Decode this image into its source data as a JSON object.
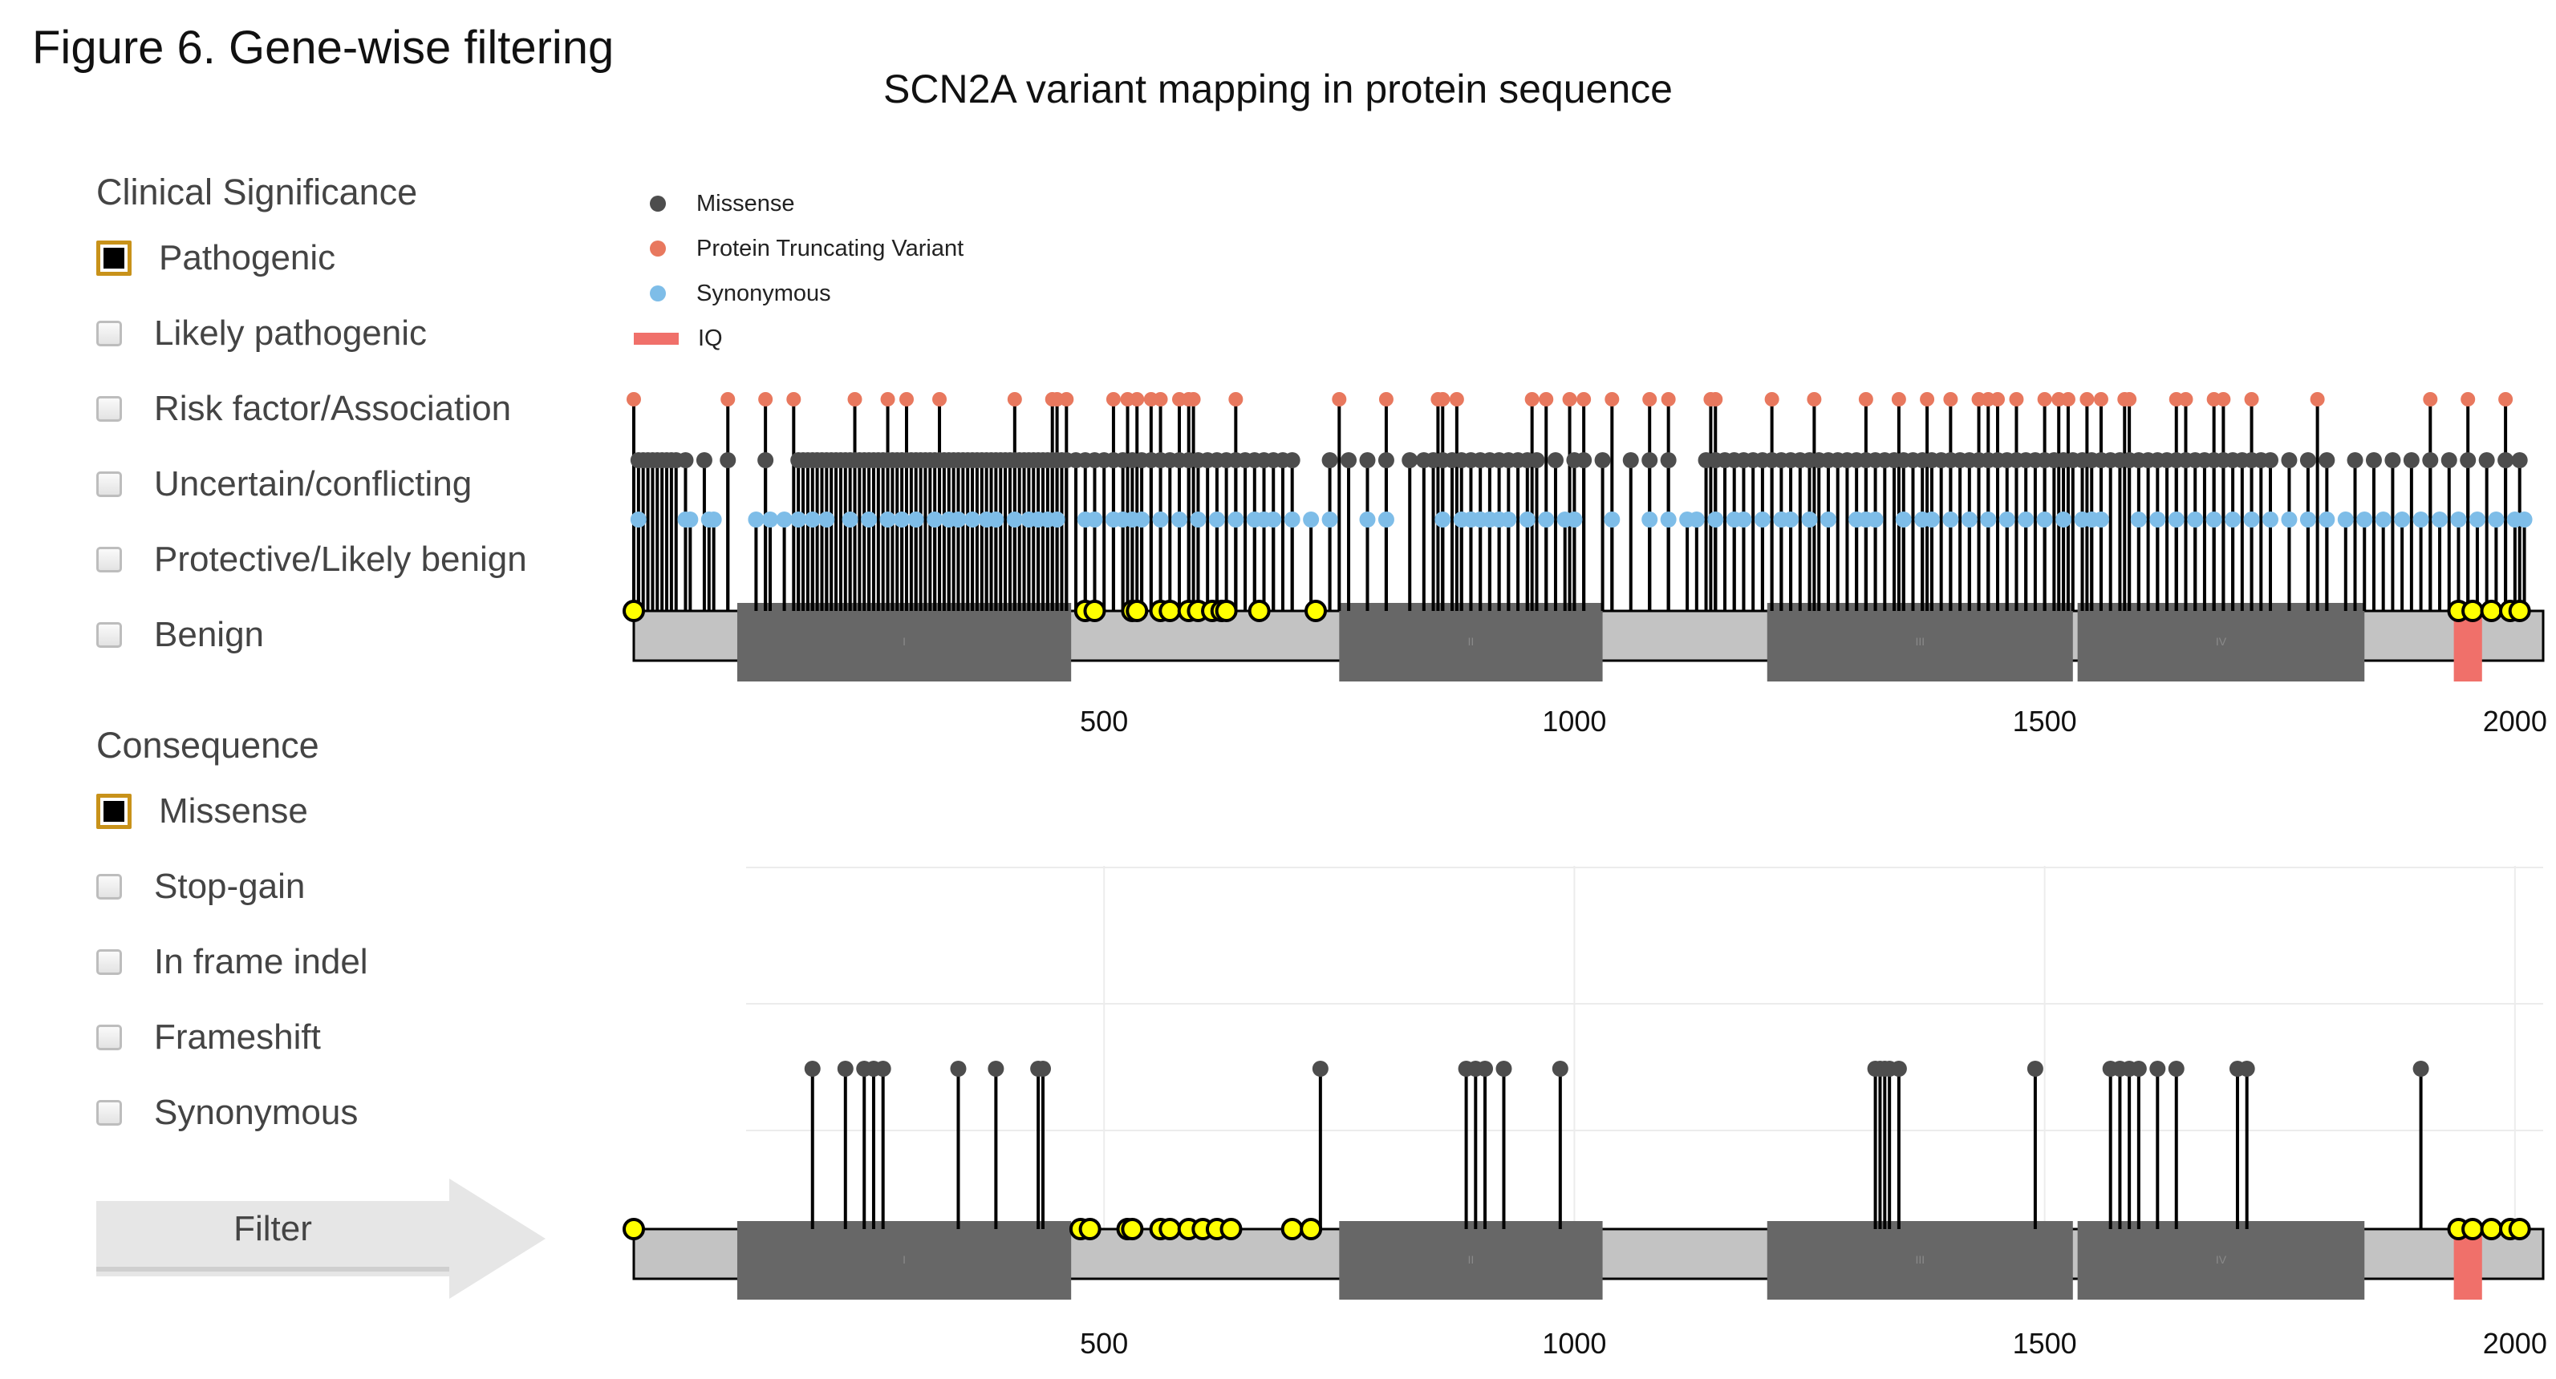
{
  "figure_title": "Figure 6. Gene-wise filtering",
  "clinical_panel": {
    "title": "Clinical Significance",
    "options": [
      {
        "label": "Pathogenic",
        "checked": true
      },
      {
        "label": "Likely pathogenic",
        "checked": false
      },
      {
        "label": "Risk factor/Association",
        "checked": false
      },
      {
        "label": "Uncertain/conflicting",
        "checked": false
      },
      {
        "label": "Protective/Likely benign",
        "checked": false
      },
      {
        "label": "Benign",
        "checked": false
      }
    ]
  },
  "consequence_panel": {
    "title": "Consequence",
    "options": [
      {
        "label": "Missense",
        "checked": true
      },
      {
        "label": "Stop-gain",
        "checked": false
      },
      {
        "label": "In frame indel",
        "checked": false
      },
      {
        "label": "Frameshift",
        "checked": false
      },
      {
        "label": "Synonymous",
        "checked": false
      }
    ]
  },
  "filter_button": {
    "label": "Filter"
  },
  "colors": {
    "missense": "#4d4d4d",
    "truncating": "#e8785e",
    "synonymous": "#7ebde8",
    "iq": "#f0706a",
    "pathogenic_marker": "#ffff00",
    "domain": "#676767",
    "backbone": "#c3c3c3",
    "checkbox_selected_border": "#c8921a"
  },
  "chart_data": [
    {
      "type": "lollipop",
      "title": "SCN2A variant mapping in protein sequence",
      "legend": [
        "Missense",
        "Protein Truncating Variant",
        "Synonymous",
        "IQ"
      ],
      "legend_position": "top-left",
      "xlim": [
        0,
        2030
      ],
      "x_ticks": [
        500,
        1000,
        1500,
        2000
      ],
      "grid": false,
      "domains": [
        {
          "name": "I",
          "start": 110,
          "end": 465
        },
        {
          "name": "II",
          "start": 750,
          "end": 1030
        },
        {
          "name": "III",
          "start": 1205,
          "end": 1530
        },
        {
          "name": "IV",
          "start": 1535,
          "end": 1840
        },
        {
          "name": "IQ",
          "start": 1935,
          "end": 1965
        }
      ],
      "series": [
        {
          "name": "Protein Truncating Variant",
          "positions": [
            0,
            100,
            140,
            170,
            235,
            270,
            290,
            325,
            405,
            445,
            450,
            460,
            510,
            525,
            535,
            550,
            560,
            580,
            590,
            595,
            640,
            750,
            800,
            855,
            860,
            875,
            955,
            970,
            995,
            1010,
            1040,
            1080,
            1100,
            1145,
            1150,
            1210,
            1255,
            1310,
            1345,
            1375,
            1400,
            1430,
            1440,
            1450,
            1470,
            1500,
            1515,
            1525,
            1545,
            1560,
            1585,
            1590,
            1640,
            1650,
            1680,
            1690,
            1720,
            1790,
            1910,
            1950,
            1990
          ]
        },
        {
          "name": "Missense",
          "positions": [
            5,
            10,
            15,
            20,
            25,
            30,
            35,
            40,
            45,
            55,
            75,
            100,
            140,
            175,
            180,
            185,
            190,
            195,
            200,
            205,
            210,
            215,
            220,
            225,
            230,
            235,
            240,
            245,
            250,
            255,
            260,
            265,
            270,
            275,
            280,
            285,
            290,
            295,
            300,
            305,
            310,
            315,
            320,
            325,
            330,
            335,
            340,
            345,
            350,
            355,
            360,
            365,
            370,
            375,
            380,
            385,
            390,
            395,
            400,
            405,
            410,
            415,
            420,
            425,
            430,
            435,
            440,
            445,
            450,
            455,
            460,
            470,
            480,
            490,
            500,
            510,
            520,
            530,
            540,
            550,
            560,
            570,
            580,
            590,
            600,
            610,
            620,
            630,
            640,
            650,
            660,
            670,
            680,
            690,
            700,
            740,
            760,
            780,
            800,
            825,
            840,
            850,
            860,
            870,
            880,
            890,
            900,
            910,
            920,
            930,
            940,
            950,
            960,
            980,
            1000,
            1010,
            1030,
            1060,
            1080,
            1100,
            1140,
            1150,
            1160,
            1170,
            1180,
            1190,
            1200,
            1210,
            1220,
            1230,
            1240,
            1250,
            1260,
            1270,
            1280,
            1290,
            1300,
            1310,
            1320,
            1330,
            1340,
            1350,
            1360,
            1370,
            1380,
            1390,
            1400,
            1410,
            1420,
            1430,
            1440,
            1450,
            1460,
            1470,
            1480,
            1490,
            1500,
            1510,
            1520,
            1530,
            1540,
            1550,
            1560,
            1570,
            1580,
            1590,
            1600,
            1610,
            1620,
            1630,
            1640,
            1650,
            1660,
            1670,
            1680,
            1690,
            1700,
            1710,
            1720,
            1730,
            1740,
            1760,
            1780,
            1800,
            1830,
            1850,
            1870,
            1890,
            1910,
            1930,
            1950,
            1970,
            1990,
            2005
          ]
        },
        {
          "name": "Synonymous",
          "positions": [
            5,
            55,
            60,
            80,
            85,
            130,
            145,
            160,
            175,
            190,
            205,
            230,
            250,
            270,
            285,
            300,
            320,
            335,
            345,
            360,
            375,
            385,
            405,
            420,
            430,
            440,
            450,
            480,
            490,
            510,
            520,
            530,
            540,
            560,
            580,
            600,
            620,
            640,
            660,
            670,
            680,
            700,
            720,
            740,
            780,
            800,
            860,
            880,
            890,
            900,
            910,
            920,
            930,
            950,
            970,
            990,
            1000,
            1040,
            1080,
            1100,
            1120,
            1130,
            1150,
            1170,
            1180,
            1200,
            1220,
            1230,
            1250,
            1270,
            1300,
            1310,
            1320,
            1350,
            1370,
            1380,
            1400,
            1420,
            1440,
            1460,
            1480,
            1500,
            1520,
            1540,
            1550,
            1560,
            1600,
            1620,
            1640,
            1660,
            1680,
            1700,
            1720,
            1740,
            1760,
            1780,
            1800,
            1820,
            1840,
            1860,
            1880,
            1900,
            1920,
            1940,
            1960,
            1980,
            2000,
            2010
          ]
        },
        {
          "name": "Pathogenic",
          "positions": [
            0,
            480,
            490,
            530,
            535,
            560,
            570,
            590,
            600,
            615,
            625,
            630,
            665,
            725,
            1940,
            1955,
            1975,
            1995,
            2005
          ]
        }
      ]
    },
    {
      "type": "lollipop",
      "xlim": [
        0,
        2030
      ],
      "x_ticks": [
        500,
        1000,
        1500,
        2000
      ],
      "grid": true,
      "domains": [
        {
          "name": "I",
          "start": 110,
          "end": 465
        },
        {
          "name": "II",
          "start": 750,
          "end": 1030
        },
        {
          "name": "III",
          "start": 1205,
          "end": 1530
        },
        {
          "name": "IV",
          "start": 1535,
          "end": 1840
        },
        {
          "name": "IQ",
          "start": 1935,
          "end": 1965
        }
      ],
      "series": [
        {
          "name": "Missense",
          "positions": [
            190,
            225,
            245,
            255,
            265,
            345,
            385,
            430,
            435,
            730,
            885,
            895,
            905,
            925,
            985,
            1320,
            1325,
            1330,
            1335,
            1345,
            1490,
            1570,
            1580,
            1590,
            1600,
            1620,
            1640,
            1705,
            1715,
            1900
          ]
        },
        {
          "name": "Pathogenic",
          "positions": [
            0,
            475,
            485,
            525,
            530,
            560,
            570,
            590,
            605,
            620,
            635,
            700,
            720,
            1940,
            1955,
            1975,
            1995,
            2005
          ]
        }
      ]
    }
  ]
}
